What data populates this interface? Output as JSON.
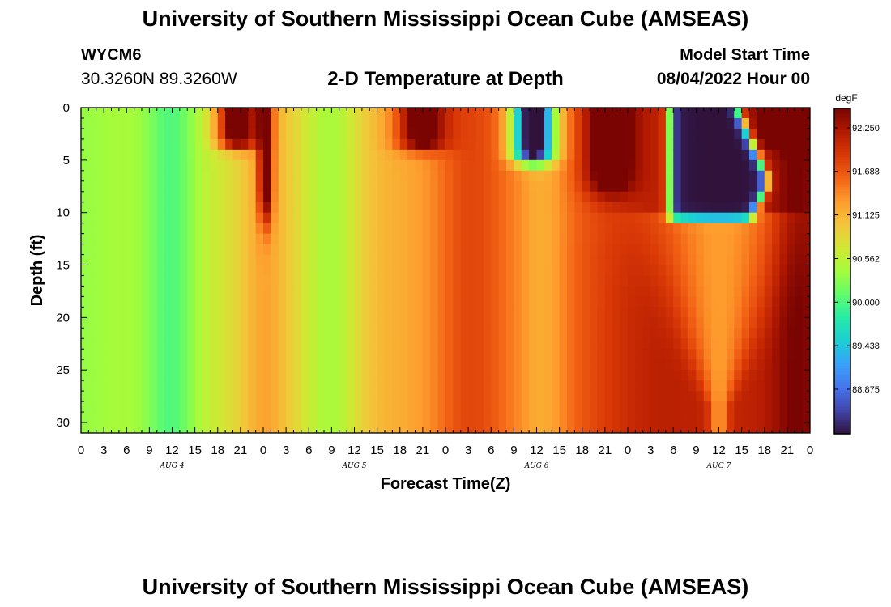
{
  "header": {
    "title": "University of Southern Mississippi Ocean Cube (AMSEAS)",
    "station": "WYCM6",
    "coords": "30.3260N  89.3260W",
    "subtitle": "2-D Temperature at Depth",
    "model_start_label": "Model Start Time",
    "model_start_value": "08/04/2022 Hour 00"
  },
  "footer": {
    "title": "University of Southern Mississippi Ocean Cube (AMSEAS)"
  },
  "chart_data": {
    "type": "heatmap",
    "title": "2-D Temperature at Depth",
    "xlabel": "Forecast Time(Z)",
    "ylabel": "Depth (ft)",
    "units": "degF",
    "x_range_hours": [
      0,
      96
    ],
    "y_range_ft": [
      0,
      31
    ],
    "x_tick_hours": [
      0,
      3,
      6,
      9,
      12,
      15,
      18,
      21,
      24,
      27,
      30,
      33,
      36,
      39,
      42,
      45,
      48,
      51,
      54,
      57,
      60,
      63,
      66,
      69,
      72,
      75,
      78,
      81,
      84,
      87,
      90,
      93,
      96
    ],
    "x_tick_labels": [
      "0",
      "3",
      "6",
      "9",
      "12",
      "15",
      "18",
      "21",
      "0",
      "3",
      "6",
      "9",
      "12",
      "15",
      "18",
      "21",
      "0",
      "3",
      "6",
      "9",
      "12",
      "15",
      "18",
      "21",
      "0",
      "3",
      "6",
      "9",
      "12",
      "15",
      "18",
      "21",
      "0"
    ],
    "day_labels": [
      {
        "label": "AUG 4",
        "hour": 12
      },
      {
        "label": "AUG 5",
        "hour": 36
      },
      {
        "label": "AUG 6",
        "hour": 60
      },
      {
        "label": "AUG 7",
        "hour": 84
      }
    ],
    "y_ticks": [
      0,
      5,
      10,
      15,
      20,
      25,
      30
    ],
    "y_tick_labels": [
      "0",
      "5",
      "10",
      "15",
      "20",
      "25",
      "30"
    ],
    "colorbar": {
      "min": 88.3,
      "max": 92.5,
      "ticks": [
        88.875,
        89.438,
        90.0,
        90.562,
        91.125,
        91.688,
        92.25
      ],
      "tick_labels": [
        "88.875",
        "89.438",
        "90.000",
        "90.562",
        "91.125",
        "91.688",
        "92.250"
      ],
      "colors": [
        "#30123b",
        "#4145ab",
        "#4675ed",
        "#39a2fc",
        "#1bcfd4",
        "#24eca6",
        "#61fc6c",
        "#a4fc3b",
        "#d1e834",
        "#f3c63a",
        "#fe9b2d",
        "#f36315",
        "#d93806",
        "#b11901",
        "#7a0402"
      ]
    }
  }
}
